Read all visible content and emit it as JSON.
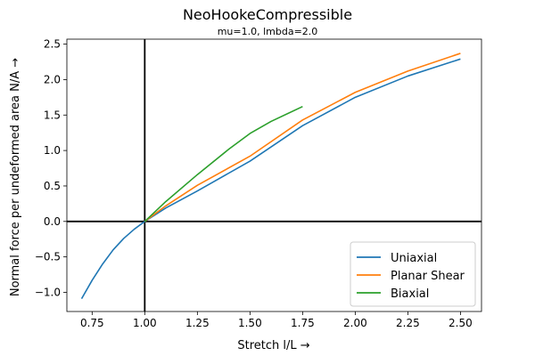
{
  "chart_data": {
    "type": "line",
    "title": "NeoHookeCompressible",
    "subtitle": "mu=1.0, lmbda=2.0",
    "xlabel": "Stretch l/L  →",
    "ylabel": "Normal force per undeformed area N/A  →",
    "xlim": [
      0.63,
      2.6
    ],
    "ylim": [
      -1.27,
      2.57
    ],
    "xticks": [
      0.75,
      1.0,
      1.25,
      1.5,
      1.75,
      2.0,
      2.25,
      2.5
    ],
    "xtick_labels": [
      "0.75",
      "1.00",
      "1.25",
      "1.50",
      "1.75",
      "2.00",
      "2.25",
      "2.50"
    ],
    "yticks": [
      -1.0,
      -0.5,
      0.0,
      0.5,
      1.0,
      1.5,
      2.0,
      2.5
    ],
    "ytick_labels": [
      "−1.0",
      "−0.5",
      "0.0",
      "0.5",
      "1.0",
      "1.5",
      "2.0",
      "2.5"
    ],
    "legend_position": "lower-right",
    "reference_lines": {
      "x": 1.0,
      "y": 0.0
    },
    "series": [
      {
        "name": "Uniaxial",
        "color": "#1f77b4",
        "x": [
          0.7,
          0.75,
          0.8,
          0.85,
          0.9,
          0.95,
          1.0,
          1.1,
          1.25,
          1.5,
          1.75,
          2.0,
          2.25,
          2.5
        ],
        "y": [
          -1.09,
          -0.83,
          -0.6,
          -0.4,
          -0.24,
          -0.11,
          0.0,
          0.19,
          0.43,
          0.85,
          1.35,
          1.75,
          2.05,
          2.29
        ]
      },
      {
        "name": "Planar Shear",
        "color": "#ff7f0e",
        "x": [
          1.0,
          1.1,
          1.25,
          1.5,
          1.75,
          2.0,
          2.25,
          2.5
        ],
        "y": [
          0.0,
          0.22,
          0.51,
          0.92,
          1.43,
          1.82,
          2.12,
          2.37
        ]
      },
      {
        "name": "Biaxial",
        "color": "#2ca02c",
        "x": [
          1.0,
          1.1,
          1.25,
          1.4,
          1.5,
          1.6,
          1.75
        ],
        "y": [
          0.0,
          0.28,
          0.66,
          1.02,
          1.24,
          1.41,
          1.62
        ]
      }
    ]
  }
}
